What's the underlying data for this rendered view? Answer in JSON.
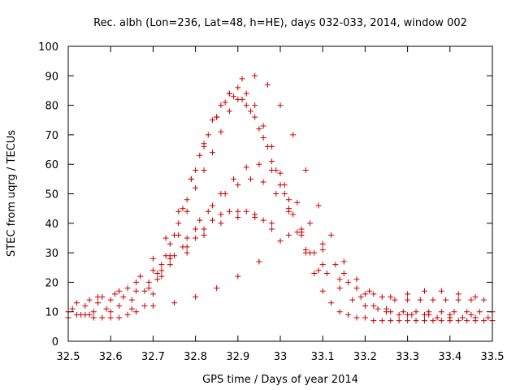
{
  "chart_data": {
    "type": "scatter",
    "title": "Rec. albh (Lon=236, Lat=48, h=HE), days 032-033, 2014, window 002",
    "xlabel": "GPS time / Days of year 2014",
    "ylabel": "STEC from uqrg / TECUs",
    "xlim": [
      32.5,
      33.5
    ],
    "ylim": [
      0,
      100
    ],
    "xticks": [
      32.5,
      32.6,
      32.7,
      32.8,
      32.9,
      33.0,
      33.1,
      33.2,
      33.3,
      33.4,
      33.5
    ],
    "xtick_labels": [
      "32.5",
      "32.6",
      "32.7",
      "32.8",
      "32.9",
      "33",
      "33.1",
      "33.2",
      "33.3",
      "33.4",
      "33.5"
    ],
    "yticks": [
      0,
      10,
      20,
      30,
      40,
      50,
      60,
      70,
      80,
      90,
      100
    ],
    "ytick_labels": [
      "0",
      "10",
      "20",
      "30",
      "40",
      "50",
      "60",
      "70",
      "80",
      "90",
      "100"
    ],
    "marker": "+",
    "marker_color": "#cc0000",
    "grid": false,
    "series": [
      {
        "name": "STEC",
        "x": [
          32.5,
          32.52,
          32.54,
          32.56,
          32.58,
          32.6,
          32.62,
          32.64,
          32.66,
          32.68,
          32.7,
          32.72,
          32.74,
          32.76,
          32.78,
          32.8,
          32.82,
          32.84,
          32.86,
          32.88,
          32.9,
          32.92,
          32.94,
          32.96,
          32.98,
          33.0,
          33.02,
          33.04,
          33.06,
          33.08,
          33.1,
          33.12,
          33.14,
          33.16,
          33.18,
          33.2,
          33.22,
          33.24,
          33.26,
          33.28,
          33.3,
          33.32,
          33.34,
          33.36,
          33.38,
          33.4,
          33.42,
          33.44,
          33.46,
          33.48,
          33.5,
          32.5,
          32.53,
          32.56,
          32.59,
          32.62,
          32.65,
          32.68,
          32.71,
          32.74,
          32.77,
          32.8,
          32.83,
          32.86,
          32.89,
          32.92,
          32.95,
          32.98,
          33.01,
          33.04,
          33.07,
          33.1,
          33.13,
          33.16,
          33.19,
          33.22,
          33.25,
          33.28,
          33.31,
          33.34,
          33.37,
          33.4,
          33.43,
          33.46,
          33.49,
          32.51,
          32.54,
          32.57,
          32.6,
          32.63,
          32.66,
          32.69,
          32.72,
          32.75,
          32.78,
          32.81,
          32.84,
          32.87,
          32.9,
          32.93,
          32.96,
          32.99,
          33.02,
          33.05,
          33.08,
          33.11,
          33.14,
          33.17,
          33.2,
          33.23,
          33.26,
          33.29,
          33.32,
          33.35,
          33.38,
          33.41,
          33.44,
          33.47,
          33.5,
          32.52,
          32.55,
          32.58,
          32.61,
          32.64,
          32.67,
          32.7,
          32.73,
          32.76,
          32.79,
          32.82,
          32.85,
          32.88,
          32.91,
          32.94,
          32.97,
          33.0,
          33.03,
          33.06,
          33.09,
          33.12,
          33.15,
          33.18,
          33.21,
          33.24,
          33.27,
          33.3,
          33.33,
          33.36,
          33.39,
          33.42,
          33.45,
          33.48,
          32.69,
          32.71,
          32.73,
          32.75,
          32.77,
          32.79,
          32.81,
          32.83,
          32.85,
          32.87,
          32.89,
          32.91,
          32.93,
          32.95,
          32.97,
          32.99,
          33.01,
          33.03,
          33.05,
          33.07,
          33.09,
          32.72,
          32.74,
          32.76,
          32.78,
          32.8,
          32.82,
          32.84,
          32.86,
          32.88,
          32.9,
          32.92,
          32.94,
          32.96,
          32.98,
          33.0,
          33.02,
          32.78,
          32.8,
          32.82,
          32.84,
          32.86,
          32.88,
          32.9,
          32.92,
          32.94,
          32.96,
          32.98,
          32.57,
          32.62,
          32.66,
          32.7,
          32.74,
          32.78,
          32.82,
          32.86,
          32.9,
          32.94,
          32.98,
          33.02,
          33.06,
          33.1,
          33.14,
          33.18,
          33.22,
          33.26,
          33.3,
          33.34,
          33.38,
          33.42,
          33.46,
          32.55,
          32.6,
          32.65,
          32.7,
          32.75,
          32.8,
          32.85,
          32.9,
          32.95,
          33.0,
          33.05,
          33.1,
          33.15,
          33.2,
          33.25,
          33.3,
          33.35,
          33.4,
          33.45
        ],
        "y": [
          10,
          9,
          9,
          8,
          8,
          8,
          8,
          9,
          10,
          12,
          16,
          22,
          29,
          36,
          44,
          52,
          58,
          64,
          71,
          78,
          82,
          80,
          76,
          69,
          61,
          53,
          45,
          37,
          30,
          23,
          17,
          13,
          10,
          9,
          8,
          8,
          7,
          7,
          7,
          7,
          7,
          7,
          7,
          7,
          7,
          7,
          7,
          7,
          7,
          7,
          7,
          8,
          9,
          10,
          11,
          12,
          14,
          17,
          21,
          26,
          32,
          38,
          44,
          50,
          55,
          59,
          60,
          58,
          53,
          47,
          40,
          33,
          26,
          20,
          15,
          12,
          10,
          9,
          9,
          9,
          8,
          8,
          8,
          8,
          8,
          11,
          12,
          13,
          14,
          15,
          17,
          20,
          24,
          29,
          35,
          41,
          46,
          50,
          53,
          55,
          54,
          50,
          44,
          37,
          30,
          23,
          18,
          14,
          12,
          11,
          10,
          10,
          10,
          10,
          10,
          10,
          10,
          10,
          10,
          13,
          14,
          15,
          16,
          18,
          22,
          28,
          35,
          44,
          55,
          66,
          76,
          84,
          89,
          90,
          87,
          80,
          70,
          58,
          46,
          36,
          27,
          21,
          17,
          15,
          14,
          14,
          14,
          14,
          14,
          14,
          14,
          14,
          18,
          23,
          29,
          36,
          45,
          55,
          63,
          70,
          76,
          81,
          83,
          82,
          78,
          72,
          66,
          58,
          50,
          43,
          36,
          30,
          24,
          26,
          33,
          40,
          48,
          58,
          67,
          75,
          80,
          84,
          86,
          84,
          80,
          73,
          66,
          57,
          48,
          30,
          35,
          38,
          41,
          43,
          44,
          44,
          44,
          43,
          41,
          38,
          15,
          17,
          20,
          24,
          28,
          32,
          36,
          40,
          42,
          42,
          40,
          36,
          31,
          26,
          21,
          18,
          16,
          15,
          16,
          17,
          17,
          16,
          15,
          9,
          10,
          11,
          12,
          13,
          15,
          18,
          22,
          27,
          34,
          38,
          31,
          23,
          16,
          11,
          9,
          9,
          9,
          9
        ]
      }
    ]
  }
}
